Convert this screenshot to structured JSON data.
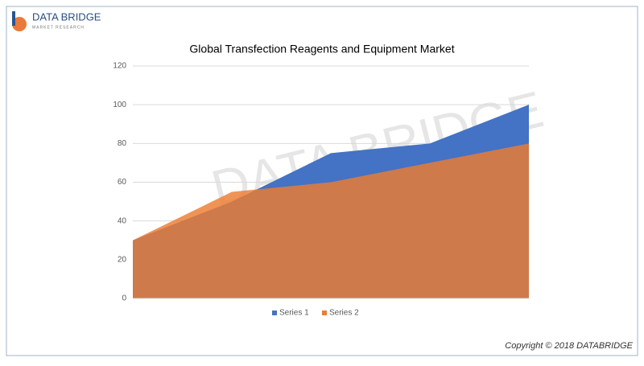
{
  "brand": {
    "name": "DATA BRIDGE",
    "tagline": "MARKET RESEARCH"
  },
  "watermark": "DATA BRIDGE",
  "copyright": "Copyright © 2018 DATABRIDGE",
  "chart_data": {
    "type": "area",
    "title": "Global Transfection Reagents and Equipment Market",
    "categories": [
      null,
      null,
      null,
      null,
      null
    ],
    "series": [
      {
        "name": "Series 1",
        "color": "#4472c4",
        "values": [
          30,
          50,
          75,
          80,
          100
        ]
      },
      {
        "name": "Series 2",
        "color": "#ed7d31",
        "values": [
          30,
          55,
          60,
          70,
          80
        ]
      }
    ],
    "ylim": [
      0,
      120
    ],
    "yticks": [
      0,
      20,
      40,
      60,
      80,
      100,
      120
    ],
    "grid": true,
    "legend": "bottom"
  }
}
